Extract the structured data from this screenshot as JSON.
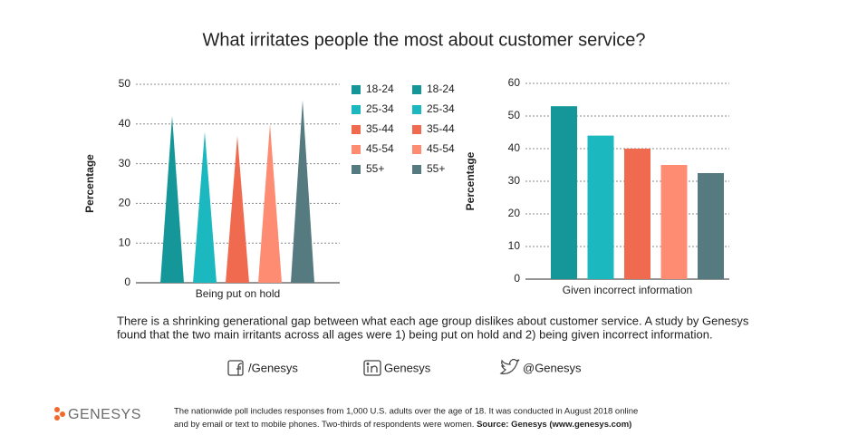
{
  "title": "What irritates people the most about customer service?",
  "chart_data": [
    {
      "type": "bar",
      "bar_style": "spike",
      "ylabel": "Percentage",
      "categories": [
        "Being put on hold"
      ],
      "series": [
        {
          "name": "18-24",
          "color": "#15979a",
          "values": [
            42
          ]
        },
        {
          "name": "25-34",
          "color": "#1cb8bf",
          "values": [
            38
          ]
        },
        {
          "name": "35-44",
          "color": "#f06a50",
          "values": [
            37
          ]
        },
        {
          "name": "45-54",
          "color": "#fd8c73",
          "values": [
            40
          ]
        },
        {
          "name": "55+",
          "color": "#557a80",
          "values": [
            46
          ]
        }
      ],
      "ylim": [
        0,
        50
      ],
      "yticks": [
        0,
        10,
        20,
        30,
        40,
        50
      ],
      "grid": true,
      "legend": "right"
    },
    {
      "type": "bar",
      "bar_style": "rect",
      "ylabel": "Percentage",
      "categories": [
        "Given incorrect information"
      ],
      "series": [
        {
          "name": "18-24",
          "color": "#15979a",
          "values": [
            53
          ]
        },
        {
          "name": "25-34",
          "color": "#1cb8bf",
          "values": [
            44
          ]
        },
        {
          "name": "35-44",
          "color": "#f06a50",
          "values": [
            40
          ]
        },
        {
          "name": "45-54",
          "color": "#fd8c73",
          "values": [
            35
          ]
        },
        {
          "name": "55+",
          "color": "#557a80",
          "values": [
            32.5
          ]
        }
      ],
      "ylim": [
        0,
        60
      ],
      "yticks": [
        0,
        10,
        20,
        30,
        40,
        50,
        60
      ],
      "grid": true,
      "legend": "left"
    }
  ],
  "description": [
    "There is a shrinking generational gap between what each age group dislikes about customer service. A study by Genesys",
    "found that the two main irritants across all ages were 1) being put on hold and 2) being given incorrect information."
  ],
  "social": {
    "facebook": "/Genesys",
    "linkedin": "Genesys",
    "twitter": "@Genesys"
  },
  "footnote": {
    "line1": "The nationwide poll includes responses from 1,000 U.S. adults over the age of 18. It was conducted in August 2018 online",
    "line2": "and by email or text to mobile phones. Two-thirds of respondents were women. ",
    "source": "Source: Genesys (www.genesys.com)"
  },
  "logo": "GENESYS"
}
